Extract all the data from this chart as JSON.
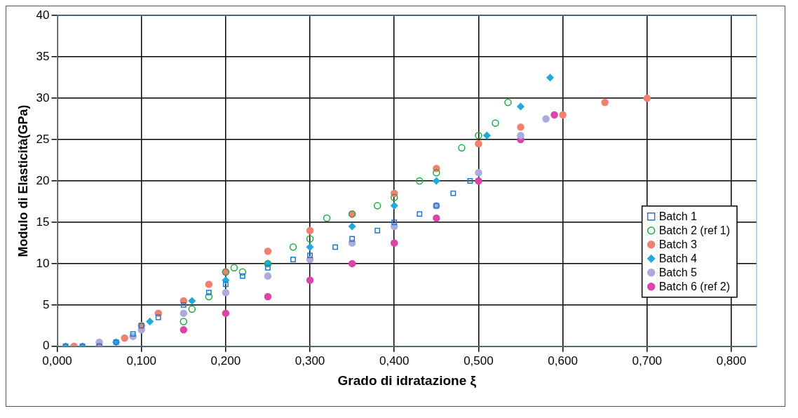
{
  "chart_data": {
    "type": "scatter",
    "xlabel": "Grado di idratazione ξ",
    "ylabel": "Modulo di Elasticità(GPa)",
    "xlim": [
      0,
      0.83
    ],
    "ylim": [
      0,
      40
    ],
    "xticks": [
      {
        "value": 0,
        "label": "0,000"
      },
      {
        "value": 0.1,
        "label": "0,100"
      },
      {
        "value": 0.2,
        "label": "0,200"
      },
      {
        "value": 0.3,
        "label": "0,300"
      },
      {
        "value": 0.4,
        "label": "0,400"
      },
      {
        "value": 0.5,
        "label": "0,500"
      },
      {
        "value": 0.6,
        "label": "0,600"
      },
      {
        "value": 0.7,
        "label": "0,700"
      },
      {
        "value": 0.8,
        "label": "0,800"
      }
    ],
    "yticks": [
      0,
      5,
      10,
      15,
      20,
      25,
      30,
      35,
      40
    ],
    "grid": true,
    "legend": "bottom right",
    "series": [
      {
        "name": "Batch 1",
        "color": "#1f77d0",
        "marker": "square",
        "x": [
          0.01,
          0.03,
          0.05,
          0.07,
          0.09,
          0.1,
          0.12,
          0.15,
          0.18,
          0.2,
          0.22,
          0.25,
          0.28,
          0.3,
          0.33,
          0.35,
          0.38,
          0.4,
          0.43,
          0.45,
          0.47,
          0.49
        ],
        "values": [
          0,
          0,
          0,
          0.5,
          1.5,
          2.5,
          3.5,
          5,
          6.5,
          7.5,
          8.5,
          9.5,
          10.5,
          11,
          12,
          13,
          14,
          15,
          16,
          17,
          18.5,
          20
        ]
      },
      {
        "name": "Batch 2 (ref 1)",
        "color": "#22aa44",
        "marker": "circle",
        "x": [
          0.15,
          0.16,
          0.18,
          0.2,
          0.21,
          0.22,
          0.25,
          0.28,
          0.3,
          0.32,
          0.35,
          0.38,
          0.4,
          0.43,
          0.45,
          0.48,
          0.5,
          0.52,
          0.535
        ],
        "values": [
          3,
          4.5,
          6,
          9,
          9.5,
          9,
          10,
          12,
          13,
          15.5,
          16,
          17,
          18,
          20,
          21,
          24,
          25.5,
          27,
          29.5
        ]
      },
      {
        "name": "Batch 3",
        "color": "#f08070",
        "marker": "circle",
        "x": [
          0.02,
          0.05,
          0.08,
          0.1,
          0.12,
          0.15,
          0.18,
          0.2,
          0.25,
          0.3,
          0.35,
          0.4,
          0.45,
          0.5,
          0.55,
          0.6,
          0.65,
          0.7
        ],
        "values": [
          0,
          0,
          1,
          2.5,
          4,
          5.5,
          7.5,
          9,
          11.5,
          14,
          16,
          18.5,
          21.5,
          24.5,
          26.5,
          28,
          29.5,
          30
        ]
      },
      {
        "name": "Batch 4",
        "color": "#22aadd",
        "marker": "diamond",
        "x": [
          0.01,
          0.03,
          0.05,
          0.07,
          0.11,
          0.16,
          0.2,
          0.25,
          0.3,
          0.35,
          0.4,
          0.45,
          0.51,
          0.55,
          0.585
        ],
        "values": [
          0,
          0,
          0,
          0.5,
          3,
          5.5,
          8,
          10,
          12,
          14.5,
          17,
          20,
          25.5,
          29,
          32.5
        ]
      },
      {
        "name": "Batch 5",
        "color": "#aaaadd",
        "marker": "circle",
        "x": [
          0.05,
          0.09,
          0.1,
          0.15,
          0.2,
          0.25,
          0.3,
          0.35,
          0.4,
          0.45,
          0.5,
          0.55,
          0.58
        ],
        "values": [
          0.5,
          1.2,
          2,
          4,
          6.5,
          8.5,
          10.5,
          12.5,
          14.5,
          17,
          21,
          25.5,
          27.5
        ]
      },
      {
        "name": "Batch 6 (ref 2)",
        "color": "#dd44aa",
        "marker": "circle",
        "x": [
          0.15,
          0.2,
          0.25,
          0.3,
          0.35,
          0.4,
          0.45,
          0.5,
          0.55,
          0.59
        ],
        "values": [
          2,
          4,
          6,
          8,
          10,
          12.5,
          15.5,
          20,
          25,
          28
        ]
      }
    ]
  }
}
